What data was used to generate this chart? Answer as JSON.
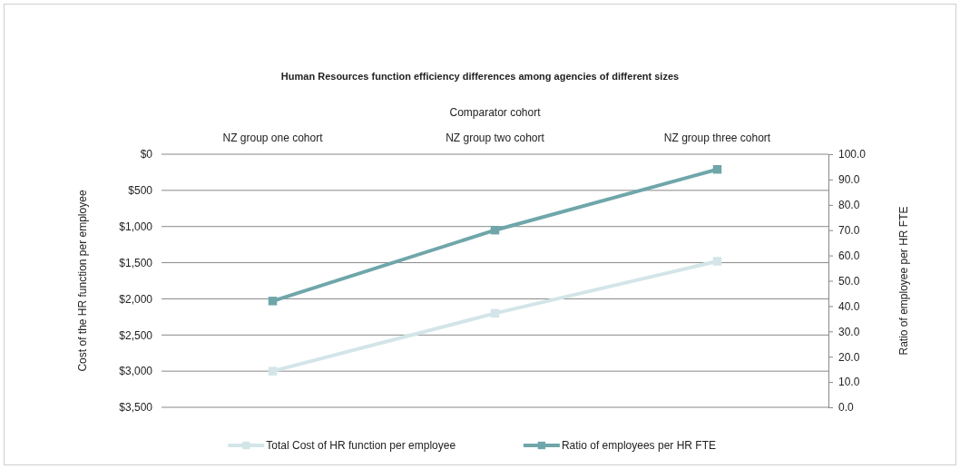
{
  "chart_data": {
    "type": "line",
    "title": "Human Resources  function efficiency differences among agencies of different sizes",
    "xlabel": "Comparator cohort",
    "ylabel": "Cost of the HR function per employee",
    "y2label": "Ratio of employee per HR FTE",
    "categories": [
      "NZ group  one cohort",
      "NZ group  two cohort",
      "NZ group  three cohort"
    ],
    "series": [
      {
        "name": "Total Cost of HR function per employee",
        "color": "#d3e5e8",
        "values": [
          3000,
          2200,
          1480
        ]
      },
      {
        "name": "Ratio of employees per HR FTE",
        "color": "#6fa6aa",
        "values": [
          42,
          70,
          94
        ],
        "axis": "y2"
      }
    ],
    "ylim": [
      3500,
      0
    ],
    "yticks": [
      {
        "value": 0,
        "label": "$0"
      },
      {
        "value": 500,
        "label": "$500"
      },
      {
        "value": 1000,
        "label": "$1,000"
      },
      {
        "value": 1500,
        "label": "$1,500"
      },
      {
        "value": 2000,
        "label": "$2,000"
      },
      {
        "value": 2500,
        "label": "$2,500"
      },
      {
        "value": 3000,
        "label": "$3,000"
      },
      {
        "value": 3500,
        "label": "$3,500"
      }
    ],
    "y2lim": [
      0,
      100
    ],
    "y2ticks": [
      {
        "value": 0,
        "label": "0.0"
      },
      {
        "value": 10,
        "label": "10.0"
      },
      {
        "value": 20,
        "label": "20.0"
      },
      {
        "value": 30,
        "label": "30.0"
      },
      {
        "value": 40,
        "label": "40.0"
      },
      {
        "value": 50,
        "label": "50.0"
      },
      {
        "value": 60,
        "label": "60.0"
      },
      {
        "value": 70,
        "label": "70.0"
      },
      {
        "value": 80,
        "label": "80.0"
      },
      {
        "value": 90,
        "label": "90.0"
      },
      {
        "value": 100,
        "label": "100.0"
      }
    ],
    "grid": "y",
    "legend": "bottom",
    "marker": "square",
    "line_style": "solid"
  }
}
